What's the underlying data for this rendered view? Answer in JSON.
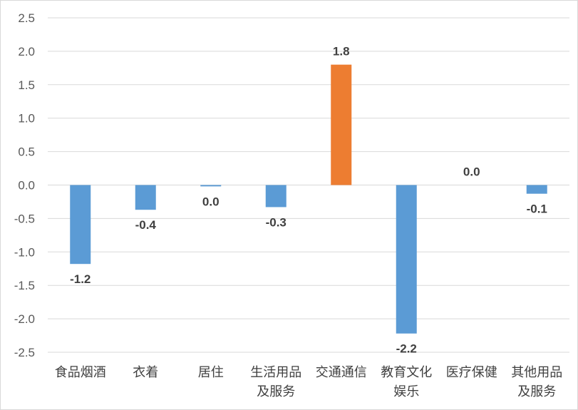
{
  "chart_data": {
    "type": "bar",
    "title": "",
    "xlabel": "",
    "ylabel": "",
    "ylim": [
      -2.5,
      2.5
    ],
    "yticks": [
      "2.5",
      "2.0",
      "1.5",
      "1.0",
      "0.5",
      "0.0",
      "-0.5",
      "-1.0",
      "-1.5",
      "-2.0",
      "-2.5"
    ],
    "grid": true,
    "legend": "none",
    "categories": [
      [
        "食品烟酒"
      ],
      [
        "衣着"
      ],
      [
        "居住"
      ],
      [
        "生活用品",
        "及服务"
      ],
      [
        "交通通信"
      ],
      [
        "教育文化",
        "娱乐"
      ],
      [
        "医疗保健"
      ],
      [
        "其他用品",
        "及服务"
      ]
    ],
    "values": [
      -1.18,
      -0.37,
      -0.02,
      -0.33,
      1.8,
      -2.22,
      0.0,
      -0.13
    ],
    "data_labels": [
      "-1.2",
      "-0.4",
      "0.0",
      "-0.3",
      "1.8",
      "-2.2",
      "0.0",
      "-0.1"
    ],
    "colors": {
      "negative": "#5B9BD5",
      "positive": "#ED7D31",
      "grid": "#D9D9D9",
      "axis": "#D9D9D9"
    }
  }
}
